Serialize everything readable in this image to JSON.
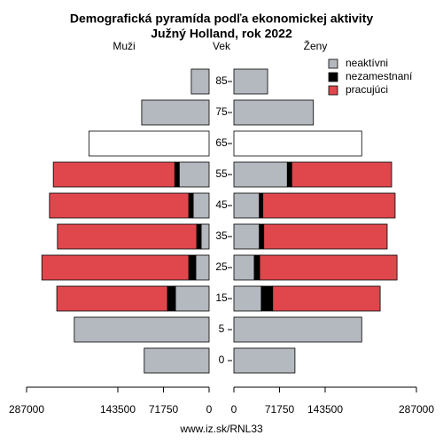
{
  "chart_data": {
    "type": "pyramid",
    "title": "Demografická pyramída podľa ekonomickej aktivity",
    "subtitle": "Južný Holland, rok 2022",
    "left_label": "Muži",
    "center_label": "Vek",
    "right_label": "Ženy",
    "source": "www.iz.sk/RNL33",
    "categories": [
      "0",
      "5",
      "15",
      "25",
      "35",
      "45",
      "55",
      "65",
      "75",
      "85"
    ],
    "xlim": [
      0,
      287000
    ],
    "xticks": [
      0,
      71750,
      143500,
      287000
    ],
    "men": [
      {
        "name": "neaktívni",
        "color": "#b4b9bf",
        "values": [
          102000,
          212000,
          53000,
          21000,
          12500,
          25000,
          47000,
          null,
          106000,
          28000
        ]
      },
      {
        "name": "nezamestnaní",
        "color": "#000000",
        "values": [
          null,
          null,
          12500,
          11000,
          7000,
          7000,
          7000,
          null,
          null,
          null
        ]
      },
      {
        "name": "pracujúci",
        "color": "#e0474c",
        "values": [
          null,
          null,
          174000,
          231000,
          219000,
          219000,
          191000,
          null,
          null,
          null
        ]
      },
      {
        "color": "#ffffff",
        "values": [
          null,
          null,
          null,
          null,
          null,
          null,
          null,
          189000,
          null,
          null
        ]
      }
    ],
    "women": [
      {
        "color": "#b4b9bf",
        "values": [
          96000,
          201000,
          43000,
          32000,
          40000,
          40000,
          84000,
          null,
          125000,
          53000
        ]
      },
      {
        "color": "#000000",
        "values": [
          null,
          null,
          18000,
          8500,
          7000,
          5500,
          7000,
          null,
          null,
          null
        ]
      },
      {
        "color": "#e0474c",
        "values": [
          null,
          null,
          169000,
          216000,
          194000,
          208000,
          157000,
          null,
          null,
          null
        ]
      },
      {
        "color": "#ffffff",
        "values": [
          null,
          null,
          null,
          null,
          null,
          null,
          null,
          201000,
          null,
          null
        ]
      }
    ]
  }
}
